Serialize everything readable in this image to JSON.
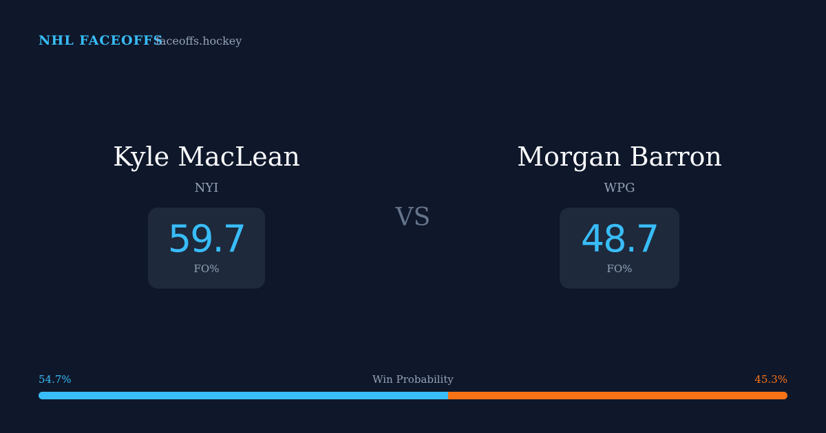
{
  "header": {
    "title": "NHL FACEOFFS",
    "site": "faceoffs.hockey"
  },
  "players": [
    {
      "name": "Kyle MacLean",
      "team": "NYI",
      "stat": "59.7",
      "stat_label": "FO%"
    },
    {
      "name": "Morgan Barron",
      "team": "WPG",
      "stat": "48.7",
      "stat_label": "FO%"
    }
  ],
  "versus": "VS",
  "win_probability": {
    "label": "Win Probability",
    "sides": [
      {
        "value": 54.7,
        "label": "54.7%",
        "color": "#38bdf8"
      },
      {
        "value": 45.3,
        "label": "45.3%",
        "color": "#f97316"
      }
    ]
  }
}
